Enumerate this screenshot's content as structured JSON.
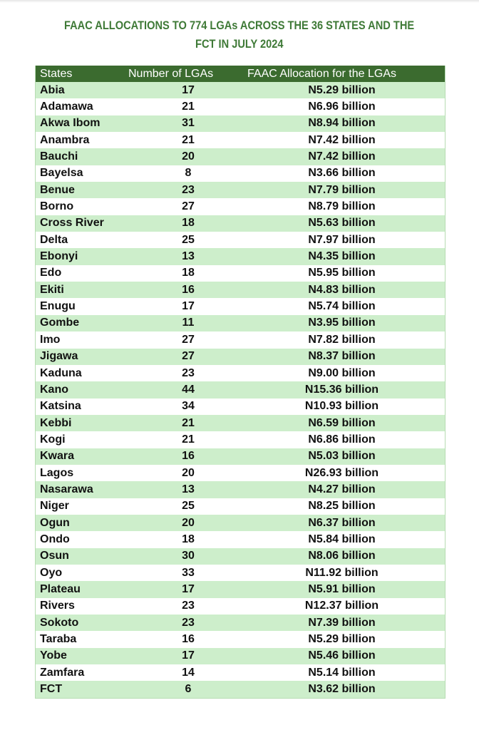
{
  "title": {
    "line1": "FAAC ALLOCATIONS TO 774 LGAs ACROSS THE 36 STATES AND THE",
    "line2": "FCT IN JULY 2024"
  },
  "colors": {
    "title": "#3f7a37",
    "header_bg": "#3b6b2f",
    "row_alt": "#cdeecb"
  },
  "table": {
    "headers": [
      "States",
      "Number of LGAs",
      "FAAC Allocation for the LGAs"
    ],
    "rows": [
      [
        "Abia",
        "17",
        "N5.29 billion"
      ],
      [
        "Adamawa",
        "21",
        "N6.96 billion"
      ],
      [
        "Akwa Ibom",
        "31",
        "N8.94 billion"
      ],
      [
        "Anambra",
        "21",
        "N7.42 billion"
      ],
      [
        "Bauchi",
        "20",
        "N7.42 billion"
      ],
      [
        "Bayelsa",
        "8",
        "N3.66 billion"
      ],
      [
        "Benue",
        "23",
        "N7.79 billion"
      ],
      [
        "Borno",
        "27",
        "N8.79 billion"
      ],
      [
        "Cross River",
        "18",
        "N5.63 billion"
      ],
      [
        "Delta",
        "25",
        "N7.97 billion"
      ],
      [
        "Ebonyi",
        "13",
        "N4.35 billion"
      ],
      [
        "Edo",
        "18",
        "N5.95 billion"
      ],
      [
        "Ekiti",
        "16",
        "N4.83 billion"
      ],
      [
        "Enugu",
        "17",
        "N5.74 billion"
      ],
      [
        "Gombe",
        "11",
        "N3.95 billion"
      ],
      [
        "Imo",
        "27",
        "N7.82 billion"
      ],
      [
        "Jigawa",
        "27",
        "N8.37 billion"
      ],
      [
        "Kaduna",
        "23",
        "N9.00 billion"
      ],
      [
        "Kano",
        "44",
        "N15.36 billion"
      ],
      [
        "Katsina",
        "34",
        "N10.93 billion"
      ],
      [
        "Kebbi",
        "21",
        "N6.59 billion"
      ],
      [
        "Kogi",
        "21",
        "N6.86 billion"
      ],
      [
        "Kwara",
        "16",
        "N5.03 billion"
      ],
      [
        "Lagos",
        "20",
        "N26.93 billion"
      ],
      [
        "Nasarawa",
        "13",
        "N4.27 billion"
      ],
      [
        "Niger",
        "25",
        "N8.25 billion"
      ],
      [
        "Ogun",
        "20",
        "N6.37 billion"
      ],
      [
        "Ondo",
        "18",
        "N5.84 billion"
      ],
      [
        "Osun",
        "30",
        "N8.06 billion"
      ],
      [
        "Oyo",
        "33",
        "N11.92 billion"
      ],
      [
        "Plateau",
        "17",
        "N5.91 billion"
      ],
      [
        "Rivers",
        "23",
        "N12.37 billion"
      ],
      [
        "Sokoto",
        "23",
        "N7.39 billion"
      ],
      [
        "Taraba",
        "16",
        "N5.29 billion"
      ],
      [
        "Yobe",
        "17",
        "N5.46 billion"
      ],
      [
        "Zamfara",
        "14",
        "N5.14 billion"
      ],
      [
        "FCT",
        "6",
        "N3.62 billion"
      ]
    ]
  }
}
